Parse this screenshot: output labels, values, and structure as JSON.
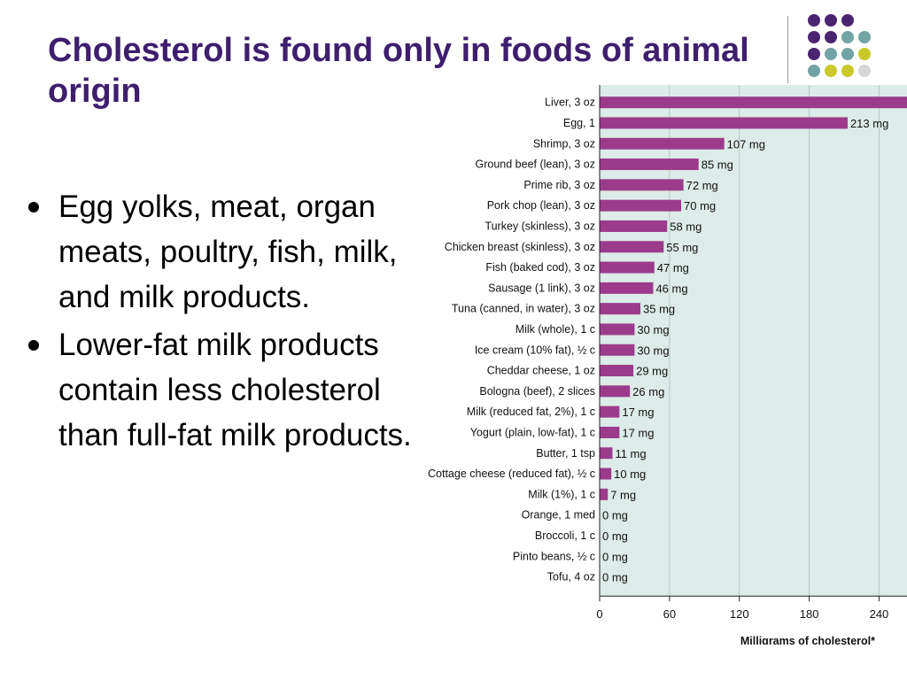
{
  "slide": {
    "title": "Cholesterol is found only in foods of animal origin",
    "bullets": [
      "Egg yolks, meat, organ meats, poultry, fish, milk, and milk products.",
      "Lower-fat milk products contain less cholesterol than full-fat milk products."
    ]
  },
  "colors": {
    "title": "#3d1f6e",
    "bar": "#9c3b8c",
    "plot_background": "#dcece8",
    "dot_purple": "#4b2470",
    "dot_teal": "#72a3a5",
    "dot_yellow": "#c9c92a"
  },
  "decoration": {
    "dots": [
      [
        "purple",
        "purple",
        "purple",
        ""
      ],
      [
        "purple",
        "purple",
        "teal",
        "teal"
      ],
      [
        "purple",
        "teal",
        "teal",
        "yellow"
      ],
      [
        "teal",
        "yellow",
        "yellow",
        "gray"
      ]
    ]
  },
  "chart_data": {
    "type": "bar",
    "orientation": "horizontal",
    "xlabel": "Milligrams of cholesterol*",
    "xlim": [
      0,
      264
    ],
    "xticks": [
      0,
      60,
      120,
      180,
      240
    ],
    "grid": true,
    "categories": [
      "Liver, 3 oz",
      "Egg, 1",
      "Shrimp, 3 oz",
      "Ground beef (lean), 3 oz",
      "Prime rib, 3 oz",
      "Pork chop (lean), 3 oz",
      "Turkey (skinless), 3 oz",
      "Chicken breast (skinless), 3 oz",
      "Fish (baked cod), 3 oz",
      "Sausage (1 link), 3 oz",
      "Tuna (canned, in water), 3 oz",
      "Milk (whole), 1 c",
      "Ice cream (10% fat), ½ c",
      "Cheddar cheese, 1 oz",
      "Bologna (beef), 2 slices",
      "Milk (reduced fat, 2%), 1 c",
      "Yogurt (plain, low-fat), 1 c",
      "Butter, 1 tsp",
      "Cottage cheese (reduced fat), ½ c",
      "Milk (1%), 1 c",
      "Orange, 1 med",
      "Broccoli, 1 c",
      "Pinto beans, ½ c",
      "Tofu, 4 oz"
    ],
    "values": [
      264,
      213,
      107,
      85,
      72,
      70,
      58,
      55,
      47,
      46,
      35,
      30,
      30,
      29,
      26,
      17,
      17,
      11,
      10,
      7,
      0,
      0,
      0,
      0
    ],
    "value_labels": [
      "",
      "213 mg",
      "107 mg",
      "85 mg",
      "72 mg",
      "70 mg",
      "58 mg",
      "55 mg",
      "47 mg",
      "46 mg",
      "35 mg",
      "30 mg",
      "30 mg",
      "29 mg",
      "26 mg",
      "17 mg",
      "17 mg",
      "11 mg",
      "10 mg",
      "7 mg",
      "0 mg",
      "0 mg",
      "0 mg",
      "0 mg"
    ]
  }
}
